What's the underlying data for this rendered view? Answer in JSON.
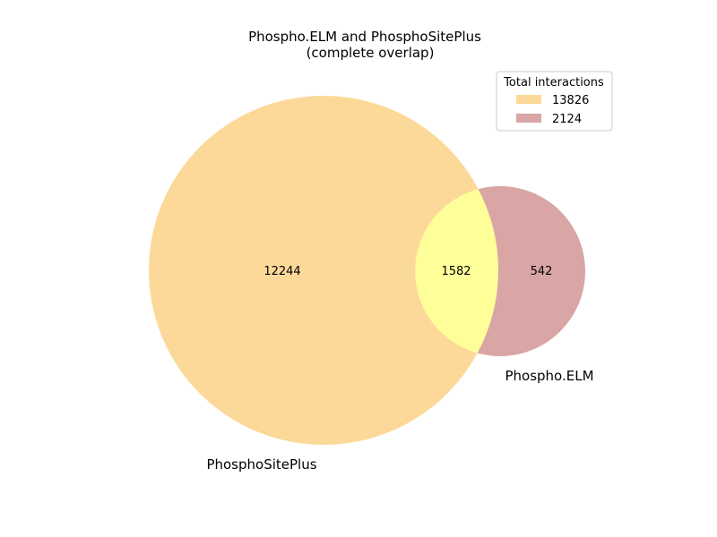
{
  "chart_data": {
    "type": "venn",
    "title": [
      "Phospho.ELM and PhosphoSitePlus",
      "(complete overlap)"
    ],
    "sets": [
      {
        "name": "PhosphoSitePlus",
        "only_count": "12244",
        "total": "13826",
        "color": "#fcd999"
      },
      {
        "name": "Phospho.ELM",
        "only_count": "542",
        "total": "2124",
        "color": "#d9a5a5"
      }
    ],
    "intersection": {
      "count": "1582",
      "color": "#ffff99"
    },
    "legend": {
      "title": "Total interactions",
      "placement": "top-right",
      "entries": [
        {
          "label": "13826",
          "color": "#fcd999"
        },
        {
          "label": "2124",
          "color": "#d9a5a5"
        }
      ]
    }
  }
}
